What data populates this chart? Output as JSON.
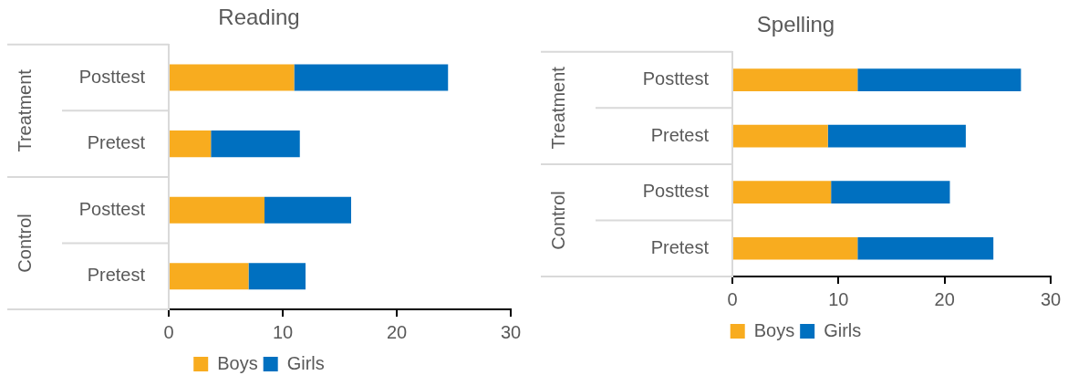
{
  "chart_data": [
    {
      "type": "bar",
      "title": "Reading",
      "orientation": "horizontal",
      "stacked": true,
      "categories": [
        "Posttest",
        "Pretest",
        "Posttest",
        "Pretest"
      ],
      "annotations": [
        "Treatment",
        "Control"
      ],
      "series": [
        {
          "name": "Boys",
          "color": "#f8ac1f",
          "values": [
            11,
            3.7,
            8.4,
            7
          ]
        },
        {
          "name": "Girls",
          "color": "#0070c0",
          "values": [
            13.5,
            7.8,
            7.6,
            5
          ]
        }
      ],
      "xlim": [
        0,
        30
      ],
      "xticks": [
        0,
        10,
        20,
        30
      ],
      "legend": "bottom",
      "grid": false
    },
    {
      "type": "bar",
      "title": "Spelling",
      "orientation": "horizontal",
      "stacked": true,
      "categories": [
        "Posttest",
        "Pretest",
        "Posttest",
        "Pretest"
      ],
      "annotations": [
        "Treatment",
        "Control"
      ],
      "series": [
        {
          "name": "Boys",
          "color": "#f8ac1f",
          "values": [
            11.8,
            9,
            9.3,
            11.8
          ]
        },
        {
          "name": "Girls",
          "color": "#0070c0",
          "values": [
            15.4,
            13,
            11.2,
            12.8
          ]
        }
      ],
      "xlim": [
        0,
        30
      ],
      "xticks": [
        0,
        10,
        20,
        30
      ],
      "legend": "bottom",
      "grid": false
    }
  ]
}
